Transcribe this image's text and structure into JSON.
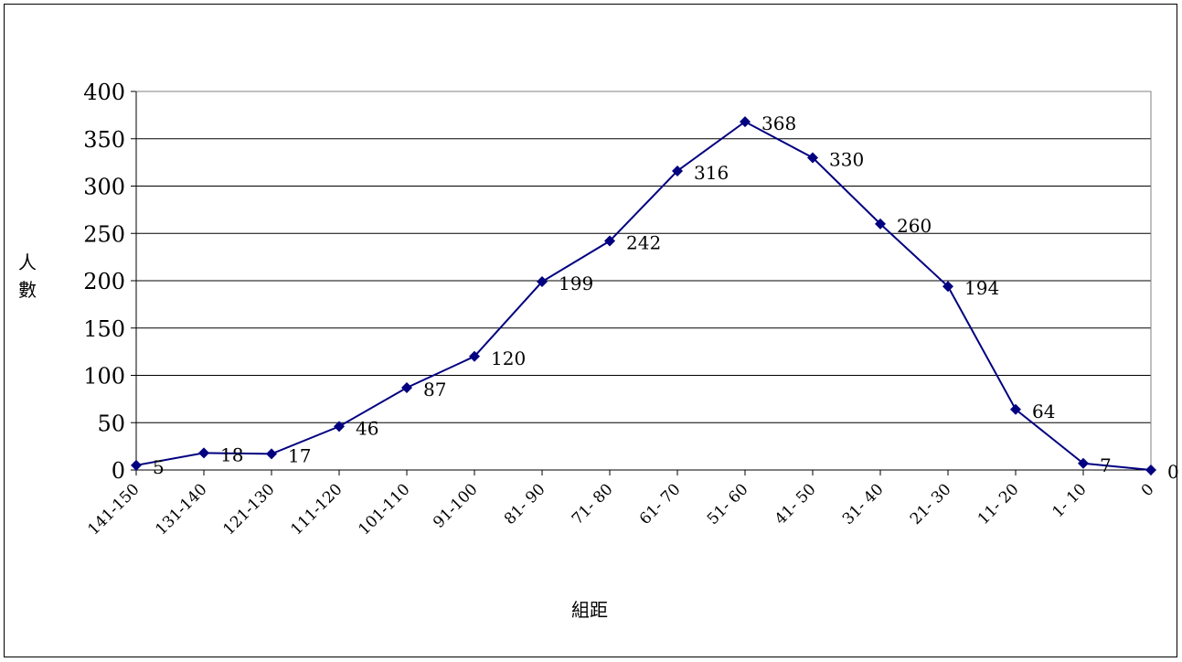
{
  "chart_data": {
    "type": "line",
    "title": "",
    "xlabel": "組距",
    "ylabel": "人數",
    "categories": [
      "141-150",
      "131-140",
      "121-130",
      "111-120",
      "101-110",
      "91-100",
      "81- 90",
      "71- 80",
      "61- 70",
      "51- 60",
      "41- 50",
      "31- 40",
      "21- 30",
      "11- 20",
      "1- 10",
      "0"
    ],
    "series": [
      {
        "values": [
          5,
          18,
          17,
          46,
          87,
          120,
          199,
          242,
          316,
          368,
          330,
          260,
          194,
          64,
          7,
          0
        ]
      }
    ],
    "ylim": [
      0,
      400
    ],
    "yticks": [
      0,
      50,
      100,
      150,
      200,
      250,
      300,
      350,
      400
    ],
    "grid": true,
    "legend": "none",
    "line_color": "#000080",
    "marker": "diamond"
  }
}
